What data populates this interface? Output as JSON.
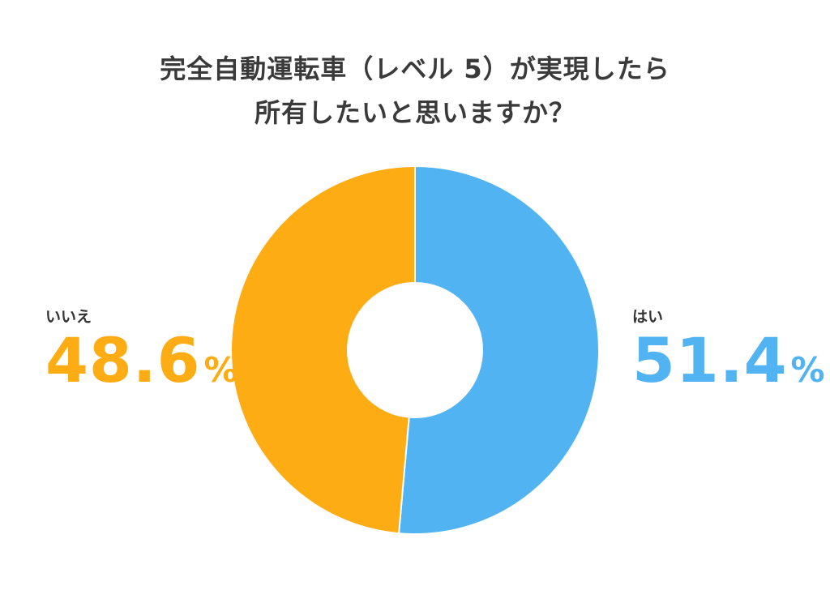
{
  "chart_data": {
    "type": "pie",
    "style": "donut",
    "title_lines": [
      "完全自動運転車（レベル 5）が実現したら",
      "所有したいと思いますか？"
    ],
    "unit": "%",
    "slices": [
      {
        "label": "はい",
        "value": 51.4,
        "value_text": "51.4",
        "color": "#52b3f3"
      },
      {
        "label": "いいえ",
        "value": 48.6,
        "value_text": "48.6",
        "color": "#fdac14"
      }
    ],
    "start_angle": "12 o'clock",
    "direction": "clockwise",
    "legend": "labels beside chart (right: はい, left: いいえ)"
  }
}
